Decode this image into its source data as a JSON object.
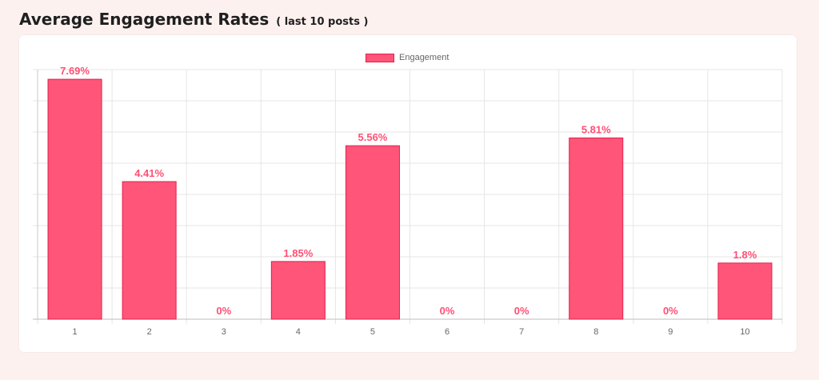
{
  "header": {
    "title": "Average Engagement Rates",
    "subtitle": "( last 10 posts )"
  },
  "chart_data": {
    "type": "bar",
    "categories": [
      "1",
      "2",
      "3",
      "4",
      "5",
      "6",
      "7",
      "8",
      "9",
      "10"
    ],
    "series": [
      {
        "name": "Engagement",
        "values": [
          7.69,
          4.41,
          0,
          1.85,
          5.56,
          0,
          0,
          5.81,
          0,
          1.8
        ],
        "labels": [
          "7.69%",
          "4.41%",
          "0%",
          "1.85%",
          "5.56%",
          "0%",
          "0%",
          "5.81%",
          "0%",
          "1.8%"
        ]
      }
    ],
    "ylim": [
      0,
      8
    ],
    "grid": true,
    "legend_position": "top",
    "bar_color": "#ff5579",
    "bar_border_color": "#e0204c",
    "label_color": "#ff4f74"
  }
}
